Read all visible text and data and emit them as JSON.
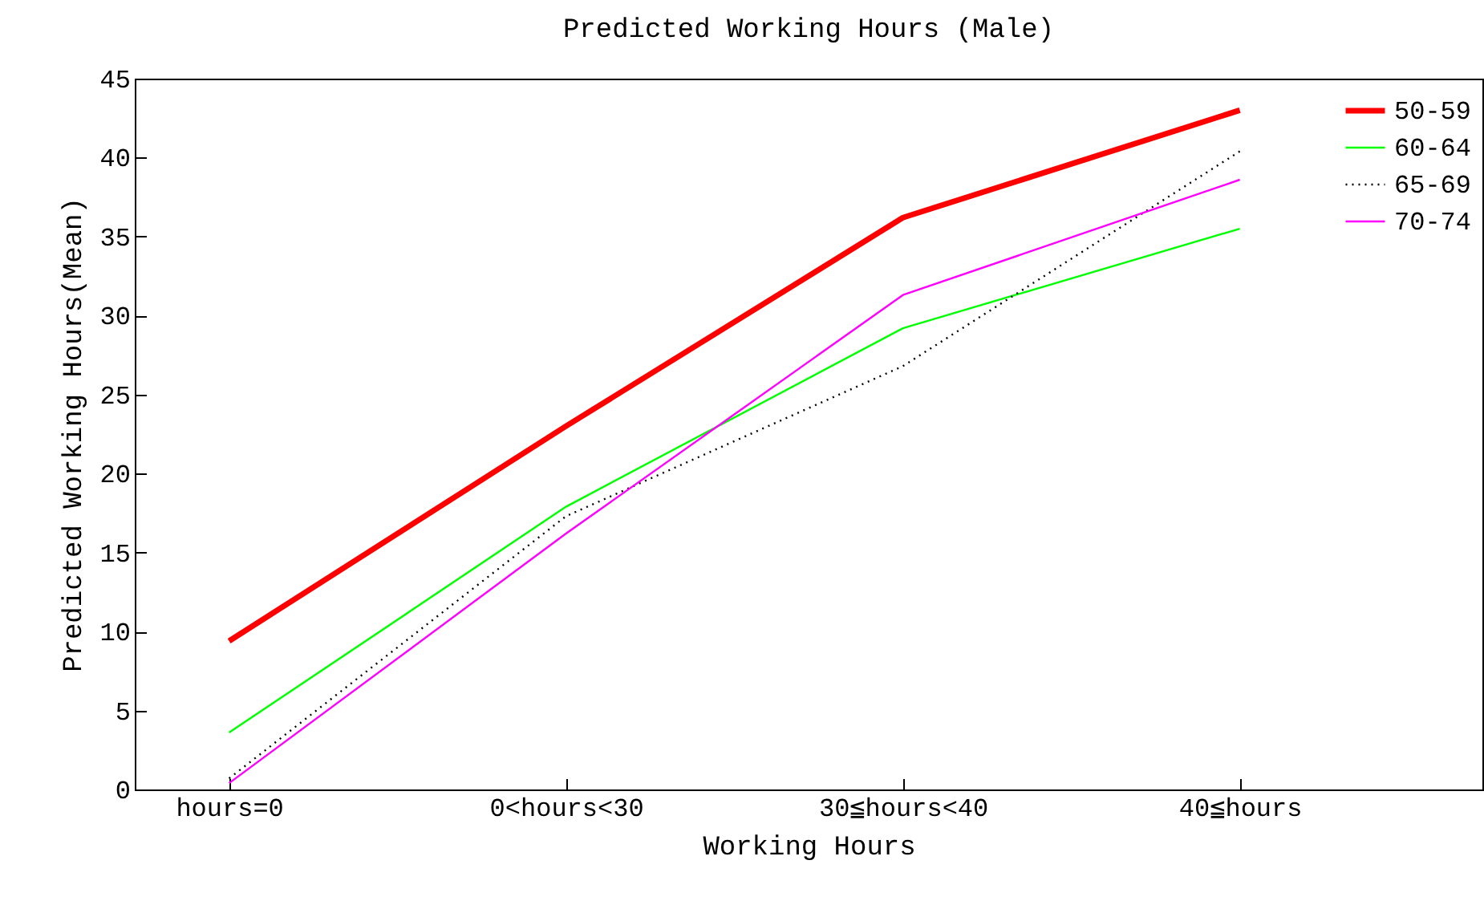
{
  "chart_data": {
    "type": "line",
    "title": "Predicted Working Hours (Male)",
    "xlabel": "Working Hours",
    "ylabel": "Predicted Working Hours(Mean)",
    "categories": [
      "hours=0",
      "0<hours<30",
      "30≦hours<40",
      "40≦hours"
    ],
    "series": [
      {
        "name": "50-59",
        "color": "#ff0000",
        "line_style": "solid",
        "values": [
          9.4,
          23.0,
          36.2,
          43.0
        ]
      },
      {
        "name": "60-64",
        "color": "#00ff00",
        "line_style": "solid",
        "values": [
          3.6,
          17.9,
          29.2,
          35.5
        ]
      },
      {
        "name": "65-69",
        "color": "#000000",
        "line_style": "dotted",
        "values": [
          0.7,
          17.3,
          26.8,
          40.4
        ]
      },
      {
        "name": "70-74",
        "color": "#ff00ff",
        "line_style": "solid",
        "values": [
          0.4,
          16.2,
          31.3,
          38.6
        ]
      }
    ],
    "ylim": [
      0,
      45
    ],
    "yticks": [
      0,
      5,
      10,
      15,
      20,
      25,
      30,
      35,
      40,
      45
    ],
    "grid": false,
    "legend": "top right",
    "marker": "none"
  }
}
